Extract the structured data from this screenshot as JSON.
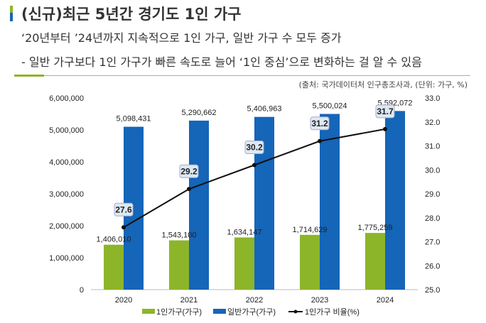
{
  "header": {
    "title": "(신규)최근 5년간 경기도 1인 가구",
    "line1": "‘20년부터 ’24년까지 지속적으로 1인 가구, 일반 가구 수 모두 증가",
    "line2": "-  일반 가구보다 1인 가구가 빠른 속도로 늘어 ‘1인 중심’으로 변화하는 걸 알 수 있음",
    "source": "(출처: 국가데이터처 인구총조사과, (단위: 가구, %)"
  },
  "chart_data": {
    "type": "bar+line",
    "categories": [
      "2020",
      "2021",
      "2022",
      "2023",
      "2024"
    ],
    "series": [
      {
        "name": "1인가구(가구)",
        "type": "bar",
        "axis": "left",
        "color": "#8db52a",
        "values": [
          1406010,
          1543100,
          1634147,
          1714629,
          1775259
        ],
        "labels": [
          "1,406,010",
          "1,543,100",
          "1,634,147",
          "1,714,629",
          "1,775,259"
        ]
      },
      {
        "name": "일반가구(가구)",
        "type": "bar",
        "axis": "left",
        "color": "#1565b8",
        "values": [
          5098431,
          5290662,
          5406963,
          5500024,
          5592072
        ],
        "labels": [
          "5,098,431",
          "5,290,662",
          "5,406,963",
          "5,500,024",
          "5,592,072"
        ]
      },
      {
        "name": "1인가구 비율(%)",
        "type": "line",
        "axis": "right",
        "color": "#111111",
        "values": [
          27.6,
          29.2,
          30.2,
          31.2,
          31.7
        ],
        "labels": [
          "27.6",
          "29.2",
          "30.2",
          "31.2",
          "31.7"
        ]
      }
    ],
    "ylim": [
      0,
      6000000
    ],
    "yticks": [
      "0",
      "1,000,000",
      "2,000,000",
      "3,000,000",
      "4,000,000",
      "5,000,000",
      "6,000,000"
    ],
    "y2lim": [
      25,
      33
    ],
    "y2ticks": [
      "25.0",
      "26.0",
      "27.0",
      "28.0",
      "29.0",
      "30.0",
      "31.0",
      "32.0",
      "33.0"
    ],
    "legend": "bottom",
    "grid": false
  }
}
